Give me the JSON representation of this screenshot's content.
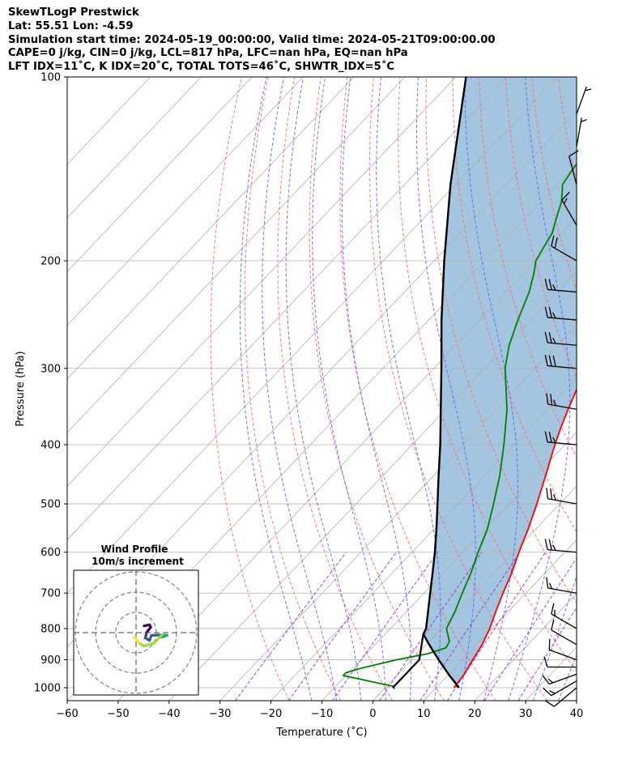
{
  "chart_data": {
    "type": "line",
    "title_lines": [
      "SkewTLogP Prestwick",
      "Lat: 55.51   Lon: -4.59",
      "Simulation start time: 2024-05-19_00:00:00, Valid time: 2024-05-21T09:00:00.00",
      "CAPE=0 j/kg, CIN=0 j/kg, LCL=817 hPa, LFC=nan hPa, EQ=nan hPa",
      "LFT IDX=11˚C, K IDX=20˚C, TOTAL TOTS=46˚C, SHWTR_IDX=5˚C"
    ],
    "xlabel": "Temperature (˚C)",
    "ylabel": "Pressure (hPa)",
    "xlim": [
      -60,
      40
    ],
    "ylim": [
      1050,
      100
    ],
    "x_ticks": [
      -60,
      -50,
      -40,
      -30,
      -20,
      -10,
      0,
      10,
      20,
      30,
      40
    ],
    "x_tick_labels": [
      "−60",
      "−50",
      "−40",
      "−30",
      "−20",
      "−10",
      "0",
      "10",
      "20",
      "30",
      "40"
    ],
    "y_ticks": [
      100,
      200,
      300,
      400,
      500,
      600,
      700,
      800,
      900,
      1000
    ],
    "y_tick_labels": [
      "100",
      "200",
      "300",
      "400",
      "500",
      "600",
      "700",
      "800",
      "900",
      "1000"
    ],
    "series": [
      {
        "name": "temperature",
        "color": "#ff0000",
        "points": [
          [
            1000,
            13.5
          ],
          [
            950,
            13.0
          ],
          [
            900,
            12.0
          ],
          [
            850,
            11.0
          ],
          [
            800,
            9.5
          ],
          [
            750,
            7.5
          ],
          [
            700,
            5.5
          ],
          [
            650,
            3.5
          ],
          [
            600,
            1.0
          ],
          [
            550,
            -1.5
          ],
          [
            500,
            -4.5
          ],
          [
            450,
            -8.0
          ],
          [
            400,
            -12.0
          ],
          [
            375,
            -14.0
          ],
          [
            350,
            -16.0
          ],
          [
            325,
            -18.0
          ],
          [
            300,
            -20.5
          ],
          [
            275,
            -22.5
          ],
          [
            250,
            -24.0
          ],
          [
            225,
            -25.5
          ],
          [
            200,
            -27.5
          ],
          [
            185,
            -29.0
          ],
          [
            175,
            -29.5
          ],
          [
            160,
            -31.0
          ],
          [
            150,
            -32.0
          ],
          [
            140,
            -32.0
          ],
          [
            130,
            -32.5
          ],
          [
            120,
            -33.0
          ],
          [
            110,
            -34.0
          ],
          [
            100,
            -34.0
          ]
        ]
      },
      {
        "name": "dewpoint",
        "color": "#008000",
        "points": [
          [
            1005,
            2.0
          ],
          [
            995,
            1.5
          ],
          [
            985,
            -1.5
          ],
          [
            970,
            -6.0
          ],
          [
            955,
            -10.5
          ],
          [
            945,
            -10.5
          ],
          [
            930,
            -8.5
          ],
          [
            900,
            -3.0
          ],
          [
            880,
            2.0
          ],
          [
            860,
            4.5
          ],
          [
            840,
            4.0
          ],
          [
            800,
            1.0
          ],
          [
            750,
            -0.5
          ],
          [
            700,
            -2.5
          ],
          [
            650,
            -4.5
          ],
          [
            600,
            -7.0
          ],
          [
            550,
            -9.5
          ],
          [
            500,
            -13.0
          ],
          [
            450,
            -17.0
          ],
          [
            400,
            -22.0
          ],
          [
            350,
            -28.0
          ],
          [
            300,
            -36.0
          ],
          [
            275,
            -39.5
          ],
          [
            250,
            -42.5
          ],
          [
            225,
            -45.5
          ],
          [
            210,
            -48.0
          ],
          [
            200,
            -50.0
          ],
          [
            190,
            -51.0
          ],
          [
            180,
            -52.0
          ],
          [
            170,
            -54.0
          ],
          [
            160,
            -56.0
          ],
          [
            150,
            -59.0
          ],
          [
            140,
            -60.0
          ],
          [
            130,
            -60.0
          ],
          [
            120,
            -61.0
          ],
          [
            110,
            -62.0
          ],
          [
            100,
            -63.0
          ]
        ]
      },
      {
        "name": "parcel_profile",
        "color": "#000000",
        "points": [
          [
            1000,
            14.5
          ],
          [
            950,
            9.9
          ],
          [
            900,
            5.3
          ],
          [
            850,
            0.6
          ],
          [
            817,
            -2.5
          ],
          [
            800,
            -3.0
          ],
          [
            750,
            -5.8
          ],
          [
            700,
            -8.8
          ],
          [
            650,
            -12.0
          ],
          [
            600,
            -15.5
          ],
          [
            550,
            -19.5
          ],
          [
            500,
            -24.0
          ],
          [
            450,
            -29.0
          ],
          [
            400,
            -34.5
          ],
          [
            350,
            -41.0
          ],
          [
            300,
            -48.5
          ],
          [
            250,
            -57.5
          ],
          [
            200,
            -68.0
          ],
          [
            150,
            -81.0
          ],
          [
            100,
            -98.0
          ]
        ]
      },
      {
        "name": "lcl_connector",
        "color": "#000000",
        "points": [
          [
            1000,
            1.5
          ],
          [
            900,
            1.5
          ],
          [
            817,
            -2.5
          ]
        ]
      }
    ],
    "dry_adiabats_theta_C": [
      -20,
      -10,
      0,
      10,
      20,
      30,
      40,
      50,
      60,
      70,
      80,
      90,
      100,
      110,
      120,
      130,
      140,
      150,
      160,
      170,
      180,
      190,
      200
    ],
    "moist_adiabats_T1000_C": [
      -15,
      -10,
      -5,
      0,
      5,
      10,
      15,
      20,
      25,
      30,
      35,
      40
    ],
    "mixing_ratio_lines_gkg": [
      0.4,
      1,
      2,
      4,
      7,
      10,
      16,
      24
    ],
    "wind_barbs": [
      {
        "p": 1000,
        "speed_kt": 10,
        "dir_deg": 230
      },
      {
        "p": 975,
        "speed_kt": 15,
        "dir_deg": 240
      },
      {
        "p": 950,
        "speed_kt": 15,
        "dir_deg": 250
      },
      {
        "p": 925,
        "speed_kt": 10,
        "dir_deg": 270
      },
      {
        "p": 900,
        "speed_kt": 10,
        "dir_deg": 290
      },
      {
        "p": 850,
        "speed_kt": 10,
        "dir_deg": 300
      },
      {
        "p": 800,
        "speed_kt": 15,
        "dir_deg": 300
      },
      {
        "p": 700,
        "speed_kt": 15,
        "dir_deg": 280
      },
      {
        "p": 600,
        "speed_kt": 25,
        "dir_deg": 275
      },
      {
        "p": 500,
        "speed_kt": 25,
        "dir_deg": 280
      },
      {
        "p": 400,
        "speed_kt": 25,
        "dir_deg": 275
      },
      {
        "p": 350,
        "speed_kt": 25,
        "dir_deg": 280
      },
      {
        "p": 300,
        "speed_kt": 30,
        "dir_deg": 275
      },
      {
        "p": 275,
        "speed_kt": 25,
        "dir_deg": 275
      },
      {
        "p": 250,
        "speed_kt": 25,
        "dir_deg": 275
      },
      {
        "p": 225,
        "speed_kt": 25,
        "dir_deg": 275
      },
      {
        "p": 200,
        "speed_kt": 20,
        "dir_deg": 300
      },
      {
        "p": 175,
        "speed_kt": 15,
        "dir_deg": 330
      },
      {
        "p": 150,
        "speed_kt": 10,
        "dir_deg": 345
      },
      {
        "p": 130,
        "speed_kt": 5,
        "dir_deg": 10
      },
      {
        "p": 115,
        "speed_kt": 5,
        "dir_deg": 20
      }
    ],
    "inset": {
      "title": "Wind Profile",
      "subtitle": "10m/s increment",
      "ring_step_ms": 10,
      "rings": 3
    },
    "colors": {
      "temperature": "#ff0000",
      "dewpoint": "#008000",
      "parcel": "#000000",
      "shade": "#a3c5df",
      "dry_adiabat": "#ff6a6a",
      "moist_adiabat": "#5a66ff",
      "mixing_ratio": "#9b30d0",
      "isotherm": "#b0b0b0",
      "grid": "#b0b0b0"
    }
  }
}
